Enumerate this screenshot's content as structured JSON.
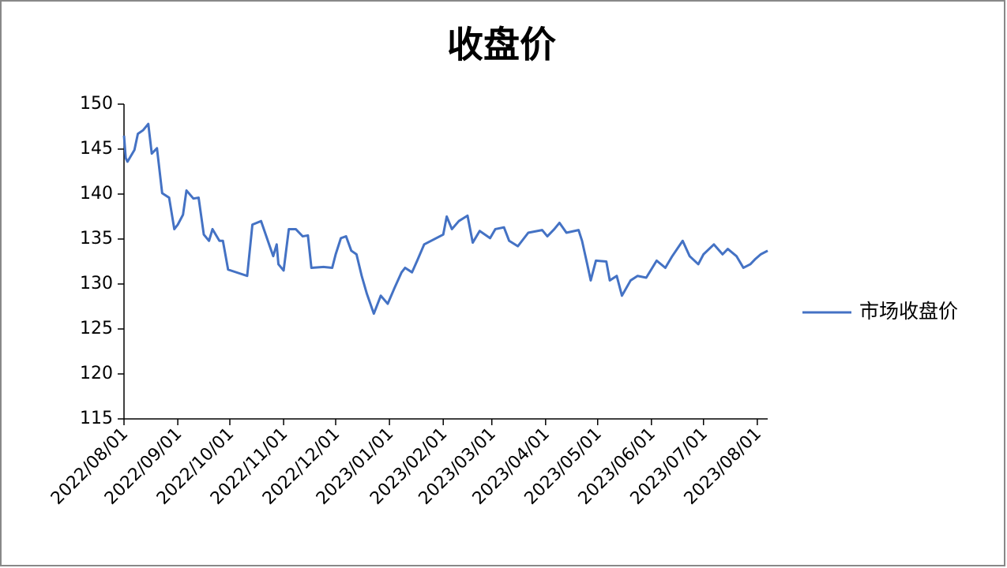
{
  "chart_data": {
    "type": "line",
    "title": "收盘价",
    "x": [
      "2022/08/01",
      "2022/08/02",
      "2022/08/03",
      "2022/08/07",
      "2022/08/09",
      "2022/08/12",
      "2022/08/15",
      "2022/08/17",
      "2022/08/20",
      "2022/08/23",
      "2022/08/27",
      "2022/08/30",
      "2022/09/01",
      "2022/09/04",
      "2022/09/06",
      "2022/09/10",
      "2022/09/13",
      "2022/09/16",
      "2022/09/19",
      "2022/09/21",
      "2022/09/25",
      "2022/09/27",
      "2022/09/30",
      "2022/10/11",
      "2022/10/14",
      "2022/10/19",
      "2022/10/24",
      "2022/10/26",
      "2022/10/28",
      "2022/10/29",
      "2022/11/01",
      "2022/11/04",
      "2022/11/08",
      "2022/11/12",
      "2022/11/15",
      "2022/11/17",
      "2022/11/24",
      "2022/11/29",
      "2022/12/01",
      "2022/12/04",
      "2022/12/07",
      "2022/12/10",
      "2022/12/13",
      "2022/12/16",
      "2022/12/19",
      "2022/12/23",
      "2022/12/27",
      "2022/12/31",
      "2023/01/04",
      "2023/01/08",
      "2023/01/10",
      "2023/01/14",
      "2023/01/17",
      "2023/01/21",
      "2023/02/01",
      "2023/02/03",
      "2023/02/06",
      "2023/02/10",
      "2023/02/15",
      "2023/02/18",
      "2023/02/22",
      "2023/02/28",
      "2023/03/03",
      "2023/03/08",
      "2023/03/11",
      "2023/03/16",
      "2023/03/22",
      "2023/03/30",
      "2023/04/02",
      "2023/04/06",
      "2023/04/09",
      "2023/04/13",
      "2023/04/20",
      "2023/04/22",
      "2023/04/25",
      "2023/04/27",
      "2023/04/30",
      "2023/05/06",
      "2023/05/08",
      "2023/05/12",
      "2023/05/15",
      "2023/05/20",
      "2023/05/24",
      "2023/05/29",
      "2023/06/04",
      "2023/06/09",
      "2023/06/13",
      "2023/06/19",
      "2023/06/23",
      "2023/06/28",
      "2023/07/01",
      "2023/07/07",
      "2023/07/12",
      "2023/07/15",
      "2023/07/20",
      "2023/07/24",
      "2023/07/28",
      "2023/07/31",
      "2023/08/03",
      "2023/08/07"
    ],
    "series": [
      {
        "name": "市场收盘价",
        "color": "#4472c4",
        "values": [
          146.5,
          144.0,
          143.6,
          144.9,
          146.7,
          147.1,
          147.8,
          144.5,
          145.1,
          140.1,
          139.6,
          136.1,
          136.6,
          137.7,
          140.4,
          139.5,
          139.6,
          135.5,
          134.8,
          136.1,
          134.8,
          134.8,
          131.6,
          130.9,
          136.6,
          137.0,
          134.2,
          133.1,
          134.4,
          132.2,
          131.5,
          136.1,
          136.1,
          135.3,
          135.4,
          131.8,
          131.9,
          131.8,
          133.3,
          135.1,
          135.3,
          133.7,
          133.3,
          130.9,
          128.9,
          126.7,
          128.7,
          127.8,
          129.6,
          131.3,
          131.8,
          131.3,
          132.6,
          134.4,
          135.5,
          137.5,
          136.1,
          137.0,
          137.6,
          134.6,
          135.9,
          135.1,
          136.1,
          136.3,
          134.8,
          134.2,
          135.7,
          136.0,
          135.3,
          136.1,
          136.8,
          135.7,
          136.0,
          134.8,
          132.2,
          130.4,
          132.6,
          132.5,
          130.4,
          130.9,
          128.7,
          130.4,
          130.9,
          130.7,
          132.6,
          131.8,
          133.1,
          134.8,
          133.1,
          132.2,
          133.3,
          134.4,
          133.3,
          133.9,
          133.1,
          131.8,
          132.2,
          132.8,
          133.3,
          133.7
        ]
      }
    ],
    "xlim": [
      "2022/08/01",
      "2023/08/07"
    ],
    "xticks": [
      "2022/08/01",
      "2022/09/01",
      "2022/10/01",
      "2022/11/01",
      "2022/12/01",
      "2023/01/01",
      "2023/02/01",
      "2023/03/01",
      "2023/04/01",
      "2023/05/01",
      "2023/06/01",
      "2023/07/01",
      "2023/08/01"
    ],
    "ylim": [
      115,
      150
    ],
    "yticks": [
      115,
      120,
      125,
      130,
      135,
      140,
      145,
      150
    ],
    "grid": false,
    "legend": "right"
  }
}
